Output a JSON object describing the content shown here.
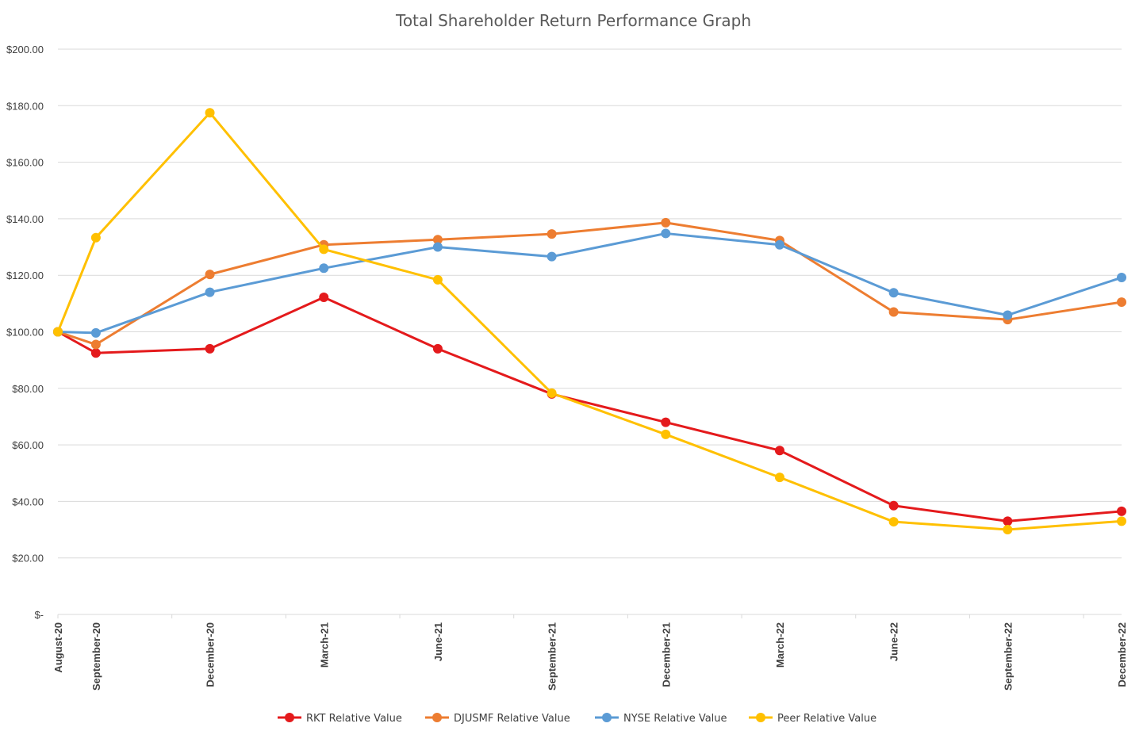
{
  "chart_data": {
    "type": "line",
    "title": "Total Shareholder Return Performance Graph",
    "xlabel": "",
    "ylabel": "",
    "x": [
      "August-20",
      "September-20",
      "December-20",
      "March-21",
      "June-21",
      "September-21",
      "December-21",
      "March-22",
      "June-22",
      "September-22",
      "December-22"
    ],
    "x_months": [
      0,
      1,
      4,
      7,
      10,
      13,
      16,
      19,
      22,
      25,
      28
    ],
    "ylim": [
      0,
      200
    ],
    "yticks": [
      0,
      20,
      40,
      60,
      80,
      100,
      120,
      140,
      160,
      180,
      200
    ],
    "ytick_labels": [
      "$-",
      "$20.00",
      "$40.00",
      "$60.00",
      "$80.00",
      "$100.00",
      "$120.00",
      "$140.00",
      "$160.00",
      "$180.00",
      "$200.00"
    ],
    "grid": true,
    "legend_position": "bottom",
    "series": [
      {
        "name": "RKT Relative Value",
        "color": "#e41a1c",
        "values": [
          100,
          92.5,
          94,
          112.2,
          94,
          78,
          68,
          58,
          38.5,
          33,
          36.5
        ]
      },
      {
        "name": "DJUSMF Relative Value",
        "color": "#ed7d31",
        "values": [
          100,
          95.5,
          120.3,
          130.8,
          132.6,
          134.6,
          138.6,
          132.3,
          107,
          104.3,
          110.5
        ]
      },
      {
        "name": "NYSE Relative Value",
        "color": "#5b9bd5",
        "values": [
          100,
          99.6,
          114,
          122.5,
          130,
          126.6,
          134.8,
          130.8,
          113.8,
          105.9,
          119.2
        ]
      },
      {
        "name": "Peer Relative Value",
        "color": "#ffc000",
        "values": [
          100,
          133.3,
          177.5,
          129.2,
          118.4,
          78.3,
          63.7,
          48.5,
          32.8,
          30,
          33
        ]
      }
    ]
  }
}
